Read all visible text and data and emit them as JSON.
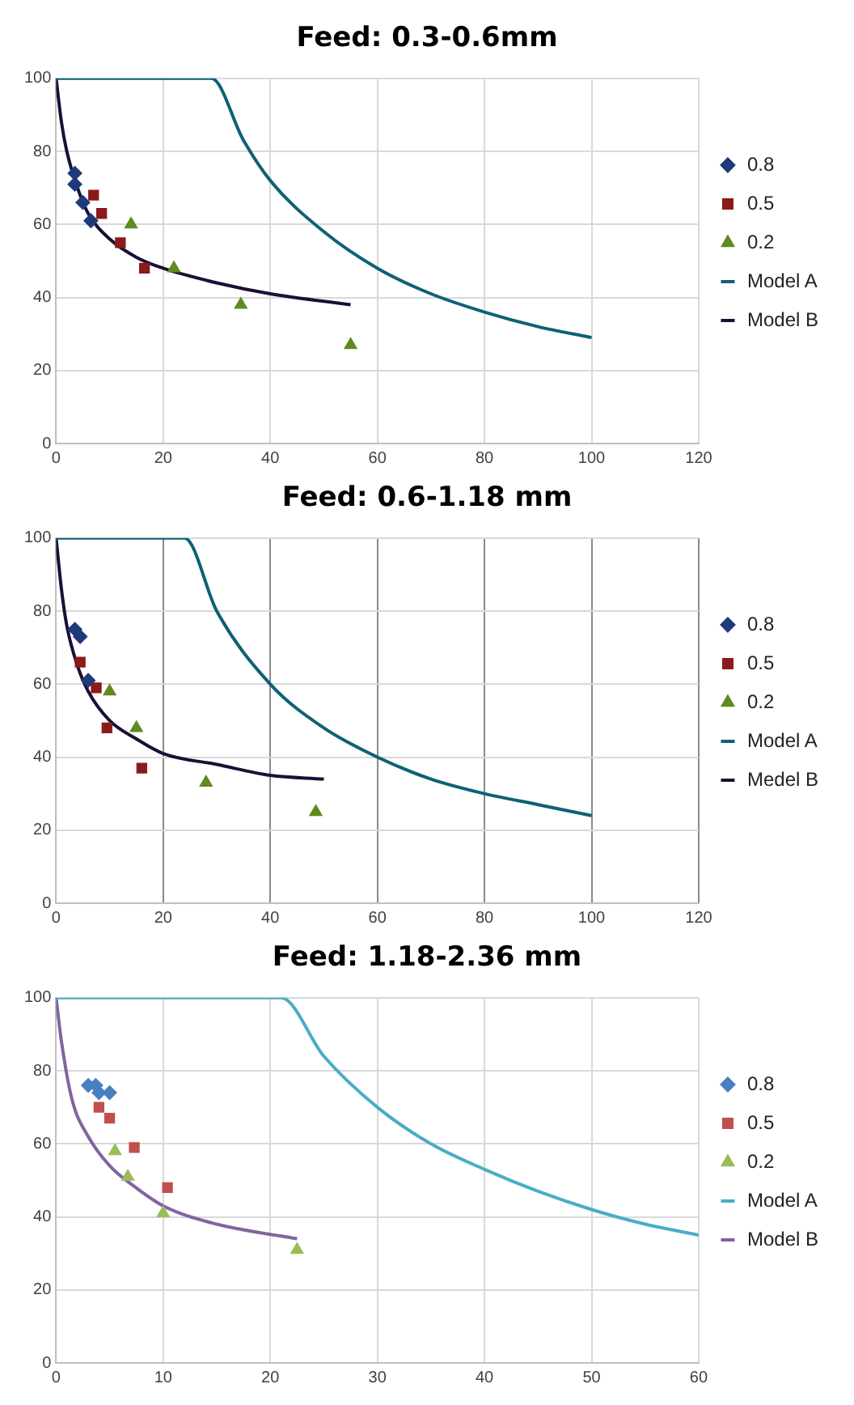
{
  "chart_data": [
    {
      "type": "scatter",
      "title": "Feed: 0.3-0.6mm",
      "xlim": [
        0,
        120
      ],
      "xticks": [
        0,
        20,
        40,
        60,
        80,
        100,
        120
      ],
      "ylim": [
        0,
        100
      ],
      "yticks": [
        0,
        20,
        40,
        60,
        80,
        100
      ],
      "grid": true,
      "legend": "right",
      "series": [
        {
          "name": "0.8",
          "marker": "diamond",
          "color": "#1f3a7a",
          "x": [
            3.5,
            3.5,
            5,
            6.5
          ],
          "values": [
            74,
            71,
            66,
            61
          ]
        },
        {
          "name": "0.5",
          "marker": "square",
          "color": "#8b1a1a",
          "x": [
            7,
            8.5,
            12,
            16.5
          ],
          "values": [
            68,
            63,
            55,
            48
          ]
        },
        {
          "name": "0.2",
          "marker": "triangle",
          "color": "#5f8a1f",
          "x": [
            14,
            22,
            34.5,
            55
          ],
          "values": [
            60,
            48,
            38,
            27
          ]
        },
        {
          "name": "Model A",
          "type": "line",
          "marker": "none",
          "color": "#0e6177",
          "x": [
            0,
            29,
            35,
            40,
            50,
            60,
            70,
            80,
            90,
            100
          ],
          "values": [
            100,
            100,
            83,
            72,
            58,
            48,
            41,
            36,
            32,
            29
          ]
        },
        {
          "name": "Model B",
          "type": "line",
          "marker": "none",
          "color": "#1a1036",
          "x": [
            0,
            1,
            2,
            4,
            6,
            10,
            15,
            20,
            30,
            40,
            55
          ],
          "values": [
            100,
            88,
            80,
            70,
            63,
            56,
            51,
            48,
            44,
            41,
            38
          ]
        }
      ]
    },
    {
      "type": "scatter",
      "title": "Feed: 0.6-1.18 mm",
      "xlim": [
        0,
        120
      ],
      "xticks": [
        0,
        20,
        40,
        60,
        80,
        100,
        120
      ],
      "ylim": [
        0,
        100
      ],
      "yticks": [
        0,
        20,
        40,
        60,
        80,
        100
      ],
      "grid": true,
      "legend": "right",
      "series": [
        {
          "name": "0.8",
          "marker": "diamond",
          "color": "#1f3a7a",
          "x": [
            3.5,
            4.5,
            6
          ],
          "values": [
            75,
            73,
            61
          ]
        },
        {
          "name": "0.5",
          "marker": "square",
          "color": "#8b1a1a",
          "x": [
            4.5,
            7.5,
            9.5,
            16
          ],
          "values": [
            66,
            59,
            48,
            37
          ]
        },
        {
          "name": "0.2",
          "marker": "triangle",
          "color": "#5f8a1f",
          "x": [
            10,
            15,
            28,
            48.5
          ],
          "values": [
            58,
            48,
            33,
            25
          ]
        },
        {
          "name": "Model A",
          "type": "line",
          "marker": "none",
          "color": "#0e6177",
          "x": [
            0,
            24,
            30,
            40,
            50,
            60,
            70,
            80,
            90,
            100
          ],
          "values": [
            100,
            100,
            80,
            60,
            48,
            40,
            34,
            30,
            27,
            24
          ]
        },
        {
          "name": "Medel B",
          "type": "line",
          "marker": "none",
          "color": "#1a1036",
          "x": [
            0,
            1,
            2,
            4,
            6,
            10,
            15,
            20,
            30,
            40,
            50
          ],
          "values": [
            100,
            86,
            76,
            65,
            58,
            50,
            45,
            41,
            38,
            35,
            34
          ]
        }
      ]
    },
    {
      "type": "scatter",
      "title": "Feed: 1.18-2.36 mm",
      "xlim": [
        0,
        60
      ],
      "xticks": [
        0,
        10,
        20,
        30,
        40,
        50,
        60
      ],
      "ylim": [
        0,
        100
      ],
      "yticks": [
        0,
        20,
        40,
        60,
        80,
        100
      ],
      "grid": true,
      "legend": "right",
      "series": [
        {
          "name": "0.8",
          "marker": "diamond",
          "color": "#4a7fc1",
          "x": [
            3,
            3.7,
            4,
            5
          ],
          "values": [
            76,
            76,
            74,
            74
          ]
        },
        {
          "name": "0.5",
          "marker": "square",
          "color": "#c0504d",
          "x": [
            4,
            5,
            7.3,
            10.4
          ],
          "values": [
            70,
            67,
            59,
            48
          ]
        },
        {
          "name": "0.2",
          "marker": "triangle",
          "color": "#9bbb59",
          "x": [
            5.5,
            6.7,
            10,
            22.5
          ],
          "values": [
            58,
            51,
            41,
            31
          ]
        },
        {
          "name": "Model A",
          "type": "line",
          "marker": "none",
          "color": "#4bacc6",
          "x": [
            0,
            21,
            25,
            30,
            35,
            40,
            45,
            50,
            55,
            60
          ],
          "values": [
            100,
            100,
            84,
            70,
            60,
            53,
            47,
            42,
            38,
            35
          ]
        },
        {
          "name": "Model B",
          "type": "line",
          "marker": "none",
          "color": "#8064a2",
          "x": [
            0,
            0.5,
            1.5,
            3,
            5,
            7,
            10,
            15,
            22.5
          ],
          "values": [
            100,
            88,
            72,
            62,
            54,
            49,
            43,
            38,
            34
          ]
        }
      ]
    }
  ]
}
